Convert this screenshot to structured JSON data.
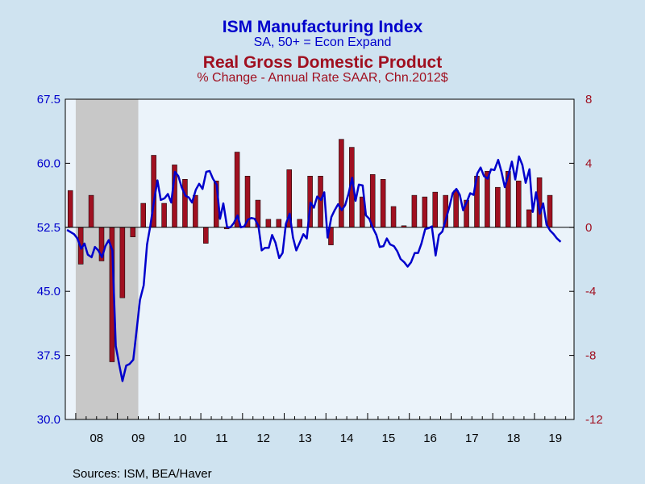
{
  "chart_data": {
    "type": "bar+line",
    "title_line1": "ISM Manufacturing Index",
    "subtitle_line1": "SA, 50+ = Econ Expand",
    "title_line2": "Real Gross Domestic Product",
    "subtitle_line2": "% Change - Annual Rate     SAAR, Chn.2012$",
    "source": "Sources:  ISM, BEA/Haver",
    "x_labels": [
      "08",
      "09",
      "10",
      "11",
      "12",
      "13",
      "14",
      "15",
      "16",
      "17",
      "18",
      "19"
    ],
    "left_axis": {
      "min": 30.0,
      "max": 67.5,
      "ticks": [
        "67.5",
        "60.0",
        "52.5",
        "45.0",
        "37.5",
        "30.0"
      ]
    },
    "right_axis": {
      "min": -12,
      "max": 8,
      "ticks": [
        "8",
        "4",
        "0",
        "-4",
        "-8",
        "-12"
      ]
    },
    "recession": {
      "start": 2008.0,
      "end": 2009.5
    },
    "colors": {
      "line": "#0000cc",
      "bars": "#a01020",
      "left_axis": "#0000cc",
      "right_axis": "#a01020",
      "recession": "#c8c8c8",
      "plot_bg": "#ebf3fa",
      "page_bg": "#cfe3f0"
    },
    "series": [
      {
        "name": "ISM Manufacturing Index",
        "axis": "left",
        "line": [
          [
            2007.79,
            52.2
          ],
          [
            2007.96,
            51.7
          ],
          [
            2008.04,
            51.2
          ],
          [
            2008.13,
            50.0
          ],
          [
            2008.21,
            50.6
          ],
          [
            2008.29,
            49.3
          ],
          [
            2008.38,
            49.0
          ],
          [
            2008.46,
            50.2
          ],
          [
            2008.54,
            49.8
          ],
          [
            2008.63,
            49.0
          ],
          [
            2008.71,
            50.3
          ],
          [
            2008.79,
            51.0
          ],
          [
            2008.88,
            49.8
          ],
          [
            2008.96,
            38.6
          ],
          [
            2009.04,
            36.5
          ],
          [
            2009.12,
            34.5
          ],
          [
            2009.21,
            36.3
          ],
          [
            2009.29,
            36.5
          ],
          [
            2009.38,
            37.0
          ],
          [
            2009.46,
            40.4
          ],
          [
            2009.54,
            44.0
          ],
          [
            2009.63,
            45.7
          ],
          [
            2009.71,
            50.5
          ],
          [
            2009.79,
            52.7
          ],
          [
            2009.88,
            55.7
          ],
          [
            2009.96,
            58.0
          ],
          [
            2010.04,
            55.7
          ],
          [
            2010.13,
            55.9
          ],
          [
            2010.21,
            56.4
          ],
          [
            2010.29,
            55.4
          ],
          [
            2010.38,
            59.0
          ],
          [
            2010.46,
            58.5
          ],
          [
            2010.54,
            57.2
          ],
          [
            2010.63,
            56.2
          ],
          [
            2010.71,
            56.0
          ],
          [
            2010.79,
            55.4
          ],
          [
            2010.88,
            56.9
          ],
          [
            2010.96,
            57.6
          ],
          [
            2011.04,
            57.0
          ],
          [
            2011.13,
            59.0
          ],
          [
            2011.21,
            59.1
          ],
          [
            2011.29,
            58.2
          ],
          [
            2011.38,
            57.5
          ],
          [
            2011.46,
            53.5
          ],
          [
            2011.54,
            55.3
          ],
          [
            2011.63,
            52.5
          ],
          [
            2011.71,
            52.5
          ],
          [
            2011.79,
            53.0
          ],
          [
            2011.88,
            53.9
          ],
          [
            2011.96,
            52.5
          ],
          [
            2012.04,
            52.6
          ],
          [
            2012.13,
            53.4
          ],
          [
            2012.21,
            53.6
          ],
          [
            2012.29,
            53.5
          ],
          [
            2012.38,
            52.7
          ],
          [
            2012.46,
            49.8
          ],
          [
            2012.54,
            50.1
          ],
          [
            2012.63,
            50.1
          ],
          [
            2012.71,
            51.6
          ],
          [
            2012.79,
            50.7
          ],
          [
            2012.88,
            48.9
          ],
          [
            2012.96,
            49.5
          ],
          [
            2013.04,
            52.9
          ],
          [
            2013.13,
            54.1
          ],
          [
            2013.21,
            51.3
          ],
          [
            2013.29,
            49.8
          ],
          [
            2013.38,
            50.8
          ],
          [
            2013.46,
            51.7
          ],
          [
            2013.54,
            51.2
          ],
          [
            2013.63,
            55.4
          ],
          [
            2013.71,
            54.8
          ],
          [
            2013.79,
            56.1
          ],
          [
            2013.88,
            55.7
          ],
          [
            2013.96,
            56.6
          ],
          [
            2014.04,
            51.3
          ],
          [
            2014.13,
            53.7
          ],
          [
            2014.21,
            54.5
          ],
          [
            2014.29,
            55.2
          ],
          [
            2014.38,
            54.5
          ],
          [
            2014.46,
            55.1
          ],
          [
            2014.54,
            56.4
          ],
          [
            2014.63,
            58.3
          ],
          [
            2014.71,
            55.6
          ],
          [
            2014.79,
            57.5
          ],
          [
            2014.88,
            57.4
          ],
          [
            2014.96,
            53.9
          ],
          [
            2015.04,
            53.5
          ],
          [
            2015.13,
            52.4
          ],
          [
            2015.21,
            51.6
          ],
          [
            2015.29,
            50.2
          ],
          [
            2015.38,
            50.3
          ],
          [
            2015.46,
            51.2
          ],
          [
            2015.54,
            50.5
          ],
          [
            2015.63,
            50.3
          ],
          [
            2015.71,
            49.7
          ],
          [
            2015.79,
            48.8
          ],
          [
            2015.88,
            48.4
          ],
          [
            2015.96,
            47.9
          ],
          [
            2016.04,
            48.4
          ],
          [
            2016.13,
            49.5
          ],
          [
            2016.21,
            49.5
          ],
          [
            2016.29,
            50.6
          ],
          [
            2016.38,
            52.3
          ],
          [
            2016.46,
            52.4
          ],
          [
            2016.54,
            52.6
          ],
          [
            2016.63,
            49.2
          ],
          [
            2016.71,
            51.6
          ],
          [
            2016.79,
            52.0
          ],
          [
            2016.88,
            53.5
          ],
          [
            2016.96,
            54.9
          ],
          [
            2017.04,
            56.5
          ],
          [
            2017.13,
            57.0
          ],
          [
            2017.21,
            56.3
          ],
          [
            2017.29,
            54.5
          ],
          [
            2017.38,
            55.5
          ],
          [
            2017.46,
            56.5
          ],
          [
            2017.54,
            56.3
          ],
          [
            2017.63,
            58.8
          ],
          [
            2017.71,
            59.5
          ],
          [
            2017.79,
            58.5
          ],
          [
            2017.88,
            58.2
          ],
          [
            2017.96,
            59.3
          ],
          [
            2018.04,
            59.2
          ],
          [
            2018.13,
            60.4
          ],
          [
            2018.21,
            59.0
          ],
          [
            2018.29,
            57.2
          ],
          [
            2018.38,
            58.7
          ],
          [
            2018.46,
            60.2
          ],
          [
            2018.54,
            58.1
          ],
          [
            2018.63,
            60.8
          ],
          [
            2018.71,
            59.8
          ],
          [
            2018.79,
            57.7
          ],
          [
            2018.88,
            59.3
          ],
          [
            2018.96,
            54.3
          ],
          [
            2019.04,
            56.6
          ],
          [
            2019.13,
            54.1
          ],
          [
            2019.21,
            55.3
          ],
          [
            2019.29,
            52.8
          ],
          [
            2019.38,
            52.1
          ],
          [
            2019.46,
            51.7
          ],
          [
            2019.54,
            51.2
          ],
          [
            2019.63,
            50.8
          ]
        ]
      },
      {
        "name": "Real Gross Domestic Product",
        "axis": "right",
        "bars": [
          [
            2007.87,
            2.3
          ],
          [
            2008.12,
            -2.3
          ],
          [
            2008.37,
            2.0
          ],
          [
            2008.62,
            -2.1
          ],
          [
            2008.87,
            -8.4
          ],
          [
            2009.12,
            -4.4
          ],
          [
            2009.37,
            -0.6
          ],
          [
            2009.62,
            1.5
          ],
          [
            2009.87,
            4.5
          ],
          [
            2010.12,
            1.5
          ],
          [
            2010.37,
            3.9
          ],
          [
            2010.62,
            3.0
          ],
          [
            2010.87,
            2.0
          ],
          [
            2011.12,
            -1.0
          ],
          [
            2011.37,
            2.9
          ],
          [
            2011.62,
            -0.1
          ],
          [
            2011.87,
            4.7
          ],
          [
            2012.12,
            3.2
          ],
          [
            2012.37,
            1.7
          ],
          [
            2012.62,
            0.5
          ],
          [
            2012.87,
            0.5
          ],
          [
            2013.12,
            3.6
          ],
          [
            2013.37,
            0.5
          ],
          [
            2013.62,
            3.2
          ],
          [
            2013.87,
            3.2
          ],
          [
            2014.12,
            -1.1
          ],
          [
            2014.37,
            5.5
          ],
          [
            2014.62,
            5.0
          ],
          [
            2014.87,
            1.9
          ],
          [
            2015.12,
            3.3
          ],
          [
            2015.37,
            3.0
          ],
          [
            2015.62,
            1.3
          ],
          [
            2015.87,
            0.1
          ],
          [
            2016.12,
            2.0
          ],
          [
            2016.37,
            1.9
          ],
          [
            2016.62,
            2.2
          ],
          [
            2016.87,
            2.0
          ],
          [
            2017.12,
            2.3
          ],
          [
            2017.37,
            1.7
          ],
          [
            2017.62,
            3.2
          ],
          [
            2017.87,
            3.5
          ],
          [
            2018.12,
            2.5
          ],
          [
            2018.37,
            3.5
          ],
          [
            2018.62,
            2.9
          ],
          [
            2018.87,
            1.1
          ],
          [
            2019.12,
            3.1
          ],
          [
            2019.37,
            2.0
          ]
        ]
      }
    ]
  }
}
